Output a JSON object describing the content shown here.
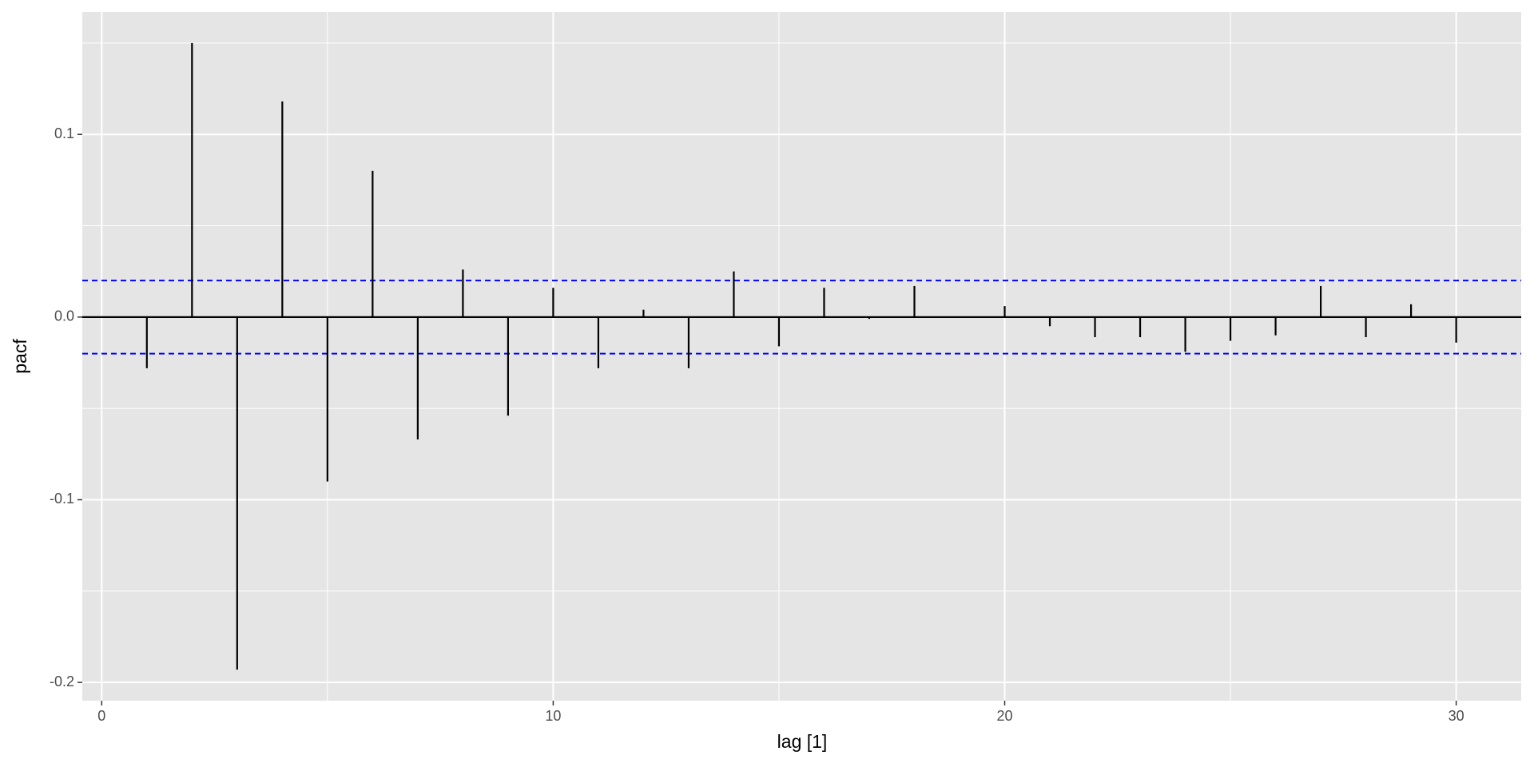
{
  "chart_data": {
    "type": "stem",
    "x_label": "lag [1]",
    "y_label": "pacf",
    "x": [
      1,
      2,
      3,
      4,
      5,
      6,
      7,
      8,
      9,
      10,
      11,
      12,
      13,
      14,
      15,
      16,
      17,
      18,
      19,
      20,
      21,
      22,
      23,
      24,
      25,
      26,
      27,
      28,
      29,
      30
    ],
    "values": [
      -0.028,
      0.15,
      -0.193,
      0.118,
      -0.09,
      0.08,
      -0.067,
      0.026,
      -0.054,
      0.016,
      -0.028,
      0.004,
      -0.028,
      0.025,
      -0.016,
      0.016,
      -0.001,
      0.017,
      0,
      0.006,
      -0.005,
      -0.011,
      -0.011,
      -0.019,
      -0.013,
      -0.01,
      0.017,
      -0.011,
      0.007,
      -0.014
    ],
    "color": "#000000",
    "significance_bounds": [
      -0.02,
      0.02
    ],
    "bound_color": "#0000ff",
    "xlim": [
      -0.43,
      31.44
    ],
    "ylim": [
      -0.21,
      0.167
    ],
    "xticks": [
      0,
      10,
      20,
      30
    ],
    "yticks": [
      -0.2,
      -0.1,
      {
        "value": 0,
        "label": "0.0"
      },
      0.1
    ],
    "grid": true,
    "panel_color": "#e5e5e5"
  }
}
